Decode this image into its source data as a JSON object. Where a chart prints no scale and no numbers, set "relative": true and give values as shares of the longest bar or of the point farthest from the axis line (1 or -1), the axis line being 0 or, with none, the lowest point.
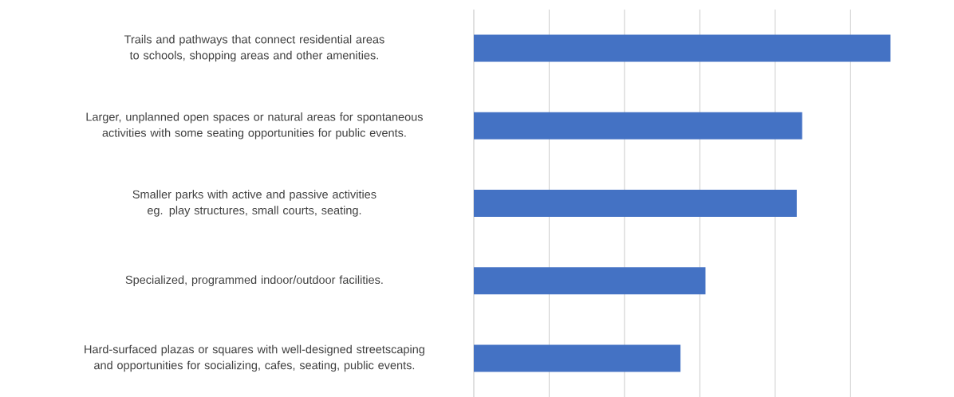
{
  "chart_data": {
    "type": "bar",
    "orientation": "horizontal",
    "relative": true,
    "grid": "x",
    "categories": [
      "Trails and pathways that connect residential areas to schools, shopping areas and other amenities.",
      "Larger, unplanned open spaces or natural areas for spontaneous activities with some seating opportunities for public events.",
      "Smaller parks with active and passive activities eg. play structures, small courts, seating.",
      "Specialized, programmed indoor/outdoor facilities.",
      "Hard-surfaced plazas or squares with well-designed streetscaping and opportunities for socializing, cafes, seating, public events."
    ],
    "values": [
      1,
      0.788,
      0.775,
      0.556,
      0.496
    ],
    "color": "#4472c4"
  }
}
